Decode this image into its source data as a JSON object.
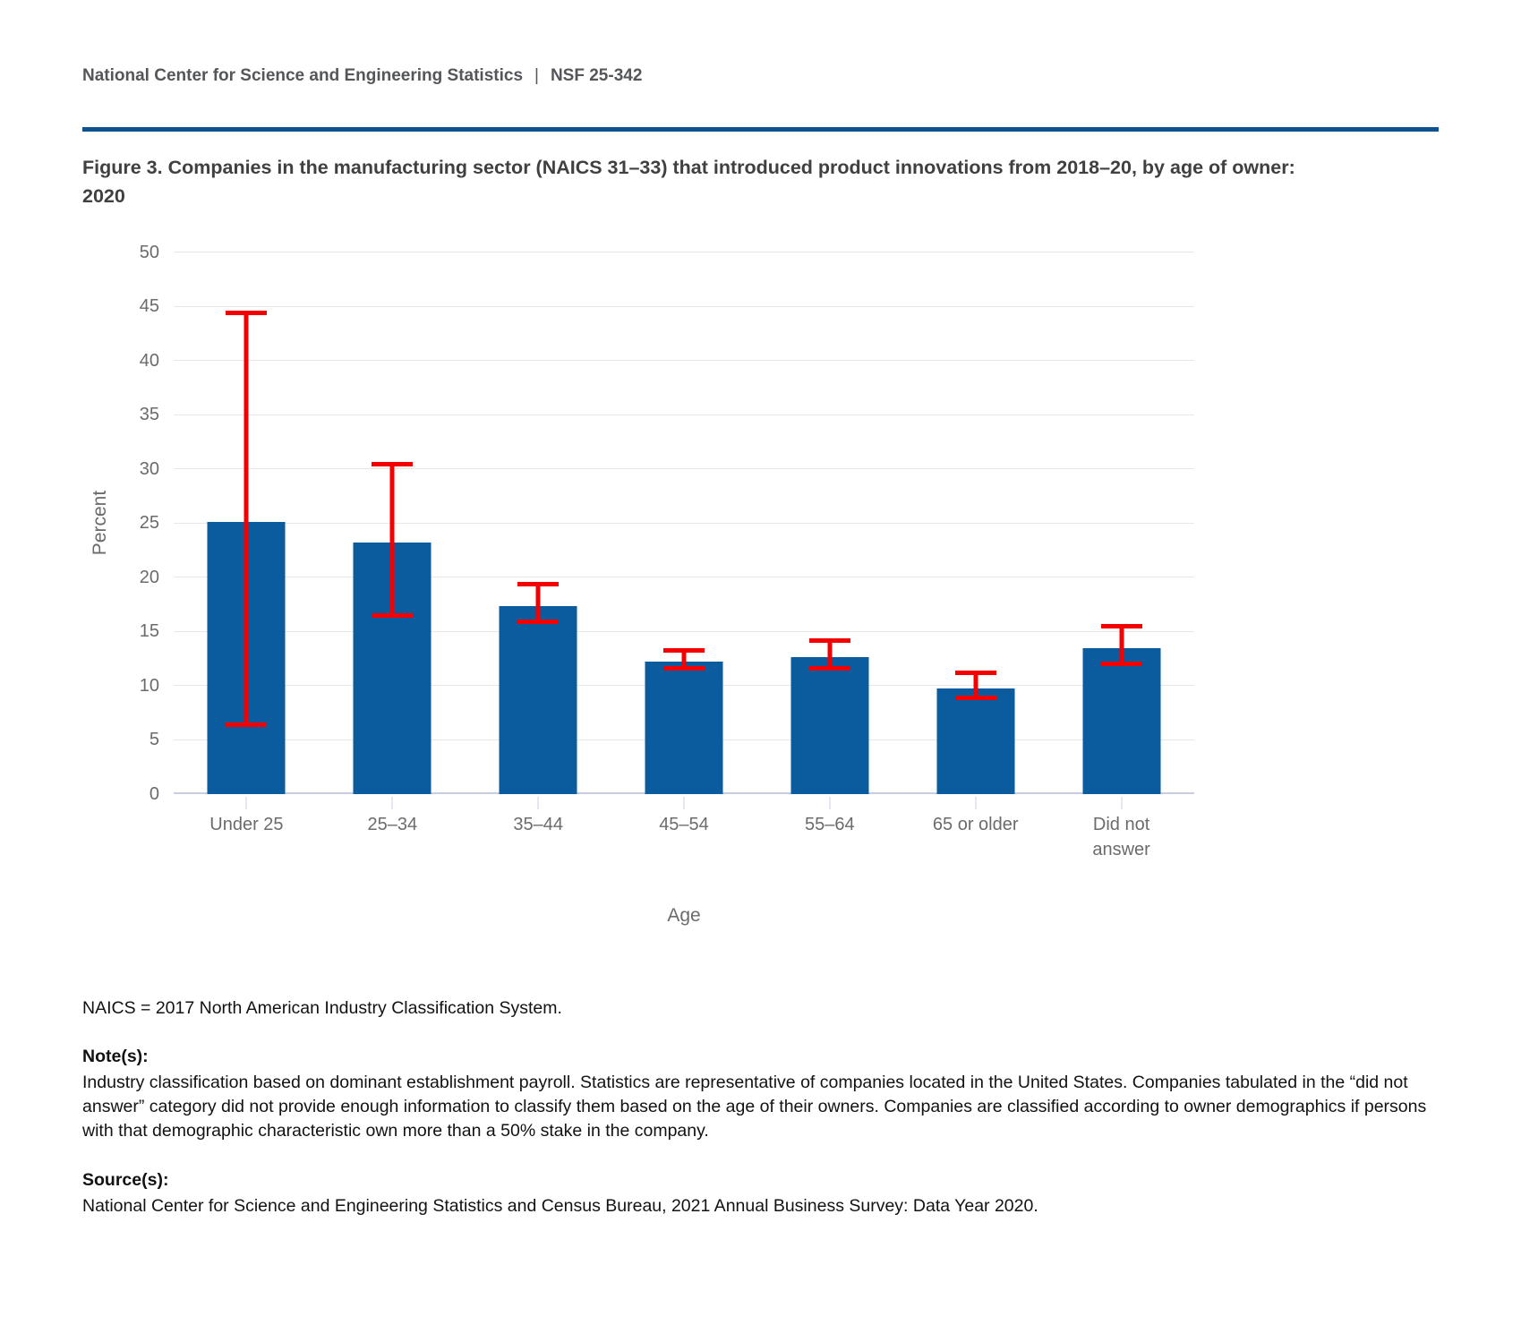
{
  "header": {
    "org": "National Center for Science and Engineering Statistics",
    "separator": "|",
    "report_id": "NSF 25-342"
  },
  "figure": {
    "title_line1": "Figure 3. Companies in the manufacturing sector (NAICS 31–33) that introduced product innovations from 2018–20, by age of owner:",
    "title_line2": "2020"
  },
  "chart_data": {
    "type": "bar",
    "title": "Figure 3. Companies in the manufacturing sector (NAICS 31–33) that introduced product innovations from 2018–20, by age of owner: 2020",
    "xlabel": "Age",
    "ylabel": "Percent",
    "ylim": [
      0,
      50
    ],
    "yticks": [
      0,
      5,
      10,
      15,
      20,
      25,
      30,
      35,
      40,
      45,
      50
    ],
    "grid": true,
    "legend": "none",
    "categories": [
      "Under 25",
      "25–34",
      "35–44",
      "45–54",
      "55–64",
      "65 or older",
      "Did not answer"
    ],
    "values": [
      25.1,
      23.2,
      17.3,
      12.2,
      12.6,
      9.7,
      13.4
    ],
    "error_bars": {
      "style": "confidence-interval",
      "low": [
        6.4,
        16.5,
        15.9,
        11.6,
        11.6,
        8.9,
        12.0
      ],
      "high": [
        44.3,
        30.4,
        19.3,
        13.2,
        14.1,
        11.1,
        15.4
      ]
    },
    "bar_color": "#0b5c9e",
    "error_bar_color": "#f40000"
  },
  "notes": {
    "naics": "NAICS = 2017 North American Industry Classification System.",
    "notes_heading": "Note(s):",
    "notes_body": "Industry classification based on dominant establishment payroll. Statistics are representative of companies located in the United States. Companies tabulated in the “did not answer” category did not provide enough information to classify them based on the age of their owners. Companies are classified according to owner demographics if persons with that demographic characteristic own more than a 50% stake in the company.",
    "source_heading": "Source(s):",
    "source_body": "National Center for Science and Engineering Statistics and Census Bureau, 2021 Annual Business Survey: Data Year 2020."
  },
  "colors": {
    "divider_blue": "#0e518f",
    "bar_blue": "#0b5c9e",
    "error_red": "#f40000",
    "gridline_gray": "#e7e7e7",
    "baseline_gray_blue": "#c6cedf",
    "axis_text_gray": "#6b6b6b",
    "header_text_gray": "#54565a",
    "title_text_gray": "#404040"
  }
}
